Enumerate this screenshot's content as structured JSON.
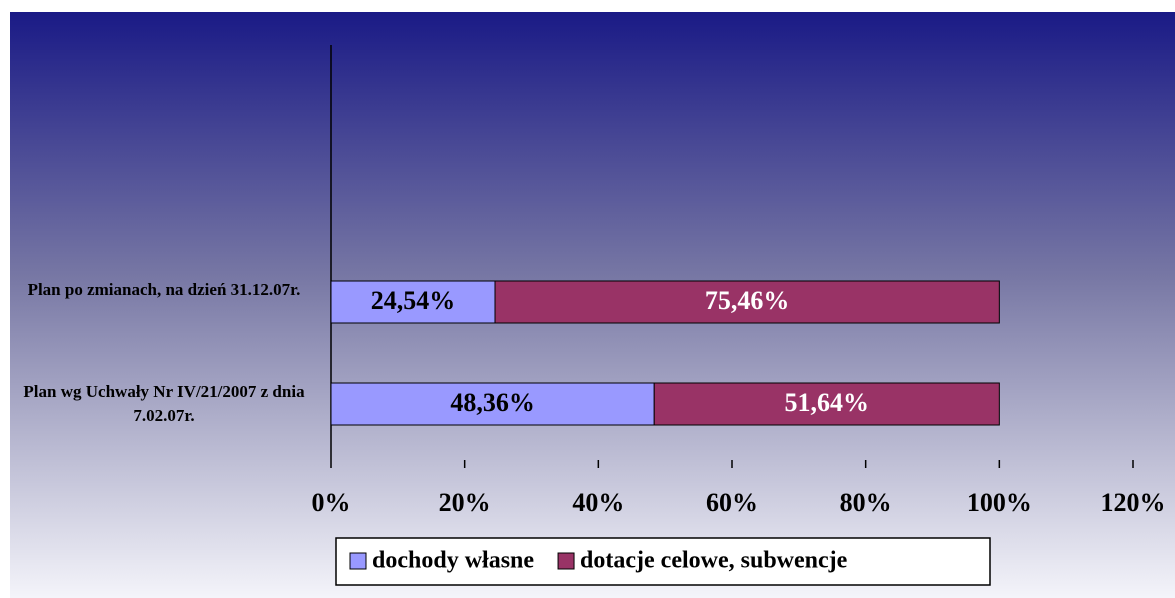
{
  "chart_data": {
    "type": "stacked-barh",
    "categories": [
      "Plan wg Uchwały Nr IV/21/2007 z dnia 7.02.07r.",
      "Plan po zmianach, na dzień 31.12.07r."
    ],
    "series": [
      {
        "name": "dochody własne",
        "color": "#9999ff",
        "label_color": "#000000",
        "values": [
          48.36,
          24.54
        ],
        "value_labels": [
          "48,36%",
          "24,54%"
        ]
      },
      {
        "name": "dotacje celowe, subwencje",
        "color": "#993366",
        "label_color": "#ffffff",
        "values": [
          51.64,
          75.46
        ],
        "value_labels": [
          "51,64%",
          "75,46%"
        ]
      }
    ],
    "xlim": [
      0,
      120
    ],
    "xticks": [
      {
        "value": 0,
        "label": "0%"
      },
      {
        "value": 20,
        "label": "20%"
      },
      {
        "value": 40,
        "label": "40%"
      },
      {
        "value": 60,
        "label": "60%"
      },
      {
        "value": 80,
        "label": "80%"
      },
      {
        "value": 100,
        "label": "100%"
      },
      {
        "value": 120,
        "label": "120%"
      }
    ],
    "legend": "bottom"
  }
}
